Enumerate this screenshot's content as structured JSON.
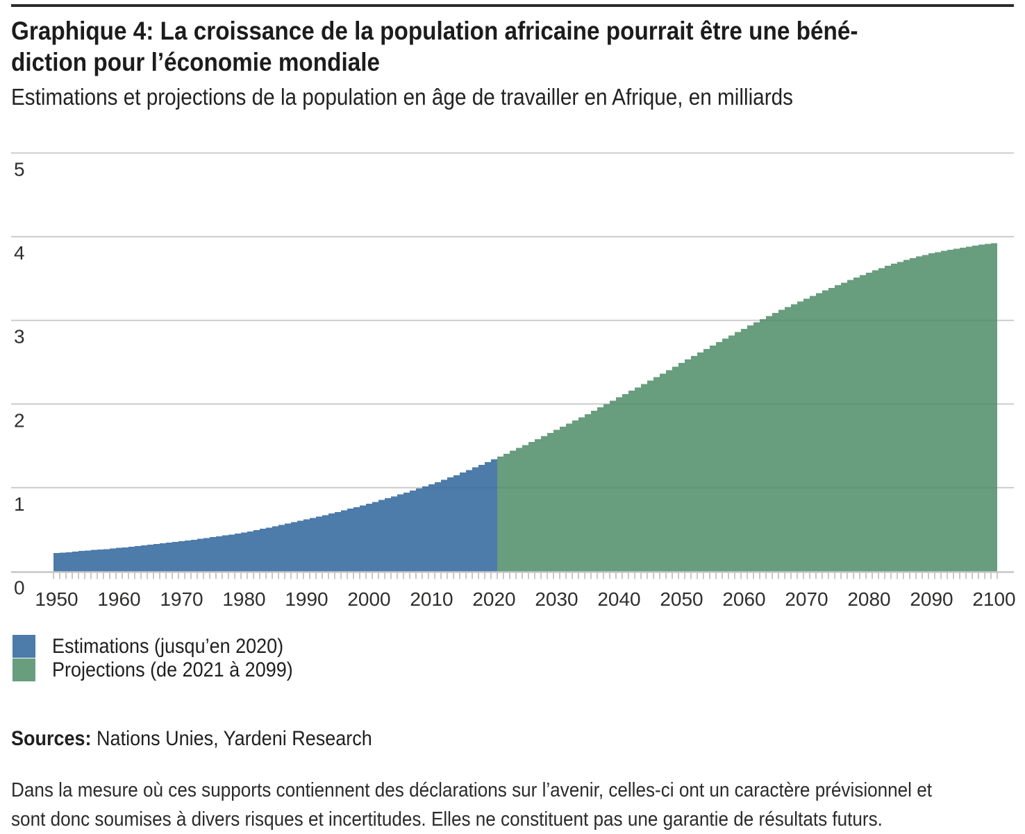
{
  "header": {
    "title_line1": "Graphique 4: La croissance de la population africaine pourrait être une béné-",
    "title_line2": "diction pour l’économie mondiale",
    "subtitle": "Estimations et projections de la population en âge de travailler en Afrique, en milliards"
  },
  "legend": {
    "items": [
      {
        "label": "Estimations (jusqu’en 2020)",
        "color": "#4D7BAA"
      },
      {
        "label": "Projections (de 2021 à 2099)",
        "color": "#689D7E"
      }
    ]
  },
  "sources": {
    "label": "Sources:",
    "text": " Nations Unies, Yardeni Research"
  },
  "disclaimer": {
    "line1": "Dans la mesure où ces supports contiennent des déclarations sur l’avenir, celles-ci ont un caractère prévisionnel et",
    "line2": "sont donc soumises à divers risques et incertitudes. Elles ne constituent pas une garantie de résultats futurs."
  },
  "chart_data": {
    "type": "bar",
    "title": "Graphique 4: La croissance de la population africaine pourrait être une bénédiction pour l’économie mondiale",
    "subtitle": "Estimations et projections de la population en âge de travailler en Afrique, en milliards",
    "unit": "milliards",
    "x_range": [
      1950,
      2100
    ],
    "bar_step_years": 1,
    "ylim": [
      0,
      5
    ],
    "y_ticks": [
      0,
      1,
      2,
      3,
      4,
      5
    ],
    "x_decade_labels": [
      "1950",
      "1960",
      "1970",
      "1980",
      "1990",
      "2000",
      "2010",
      "2020",
      "2030",
      "2040",
      "2050",
      "2060",
      "2070",
      "2080",
      "2090",
      "2100"
    ],
    "anchor_years": [
      1950,
      1955,
      1960,
      1965,
      1970,
      1975,
      1980,
      1985,
      1990,
      1995,
      2000,
      2005,
      2010,
      2015,
      2020,
      2025,
      2030,
      2035,
      2040,
      2045,
      2050,
      2055,
      2060,
      2065,
      2070,
      2075,
      2080,
      2085,
      2090,
      2095,
      2100
    ],
    "anchor_values": [
      0.22,
      0.25,
      0.28,
      0.32,
      0.36,
      0.41,
      0.465,
      0.54,
      0.62,
      0.71,
      0.81,
      0.92,
      1.04,
      1.18,
      1.34,
      1.51,
      1.69,
      1.88,
      2.08,
      2.28,
      2.49,
      2.7,
      2.9,
      3.09,
      3.26,
      3.42,
      3.57,
      3.7,
      3.8,
      3.87,
      3.92
    ],
    "series": [
      {
        "name": "Estimations (jusqu’en 2020)",
        "color": "#4D7BAA",
        "from": 1950,
        "to": 2020
      },
      {
        "name": "Projections (de 2021 à 2099)",
        "color": "#689D7E",
        "from": 2021,
        "to": 2100
      }
    ],
    "grid": "horizontal",
    "grid_color": "#dadada",
    "axis_color": "#c6c6c6",
    "tick_color": "#c9c9c9",
    "label_color": "#2e2e2d",
    "legend_position": "bottom-left"
  }
}
